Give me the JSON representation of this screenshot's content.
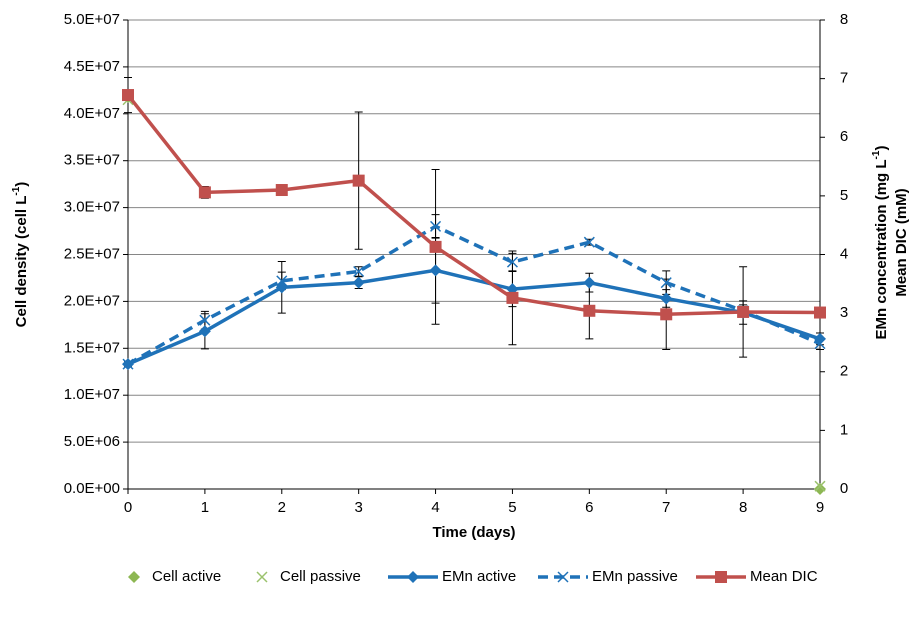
{
  "chart_data": {
    "type": "line",
    "x_label": "Time (days)",
    "y_label": [
      "Cell density (cell L",
      "-1",
      ")"
    ],
    "y2_label": [
      [
        "EMn concentration (mg L",
        "-1",
        ")"
      ],
      [
        "Mean DIC (mM)"
      ]
    ],
    "x": [
      0,
      1,
      2,
      3,
      4,
      5,
      6,
      7,
      8,
      9
    ],
    "xlim": [
      0,
      9
    ],
    "xticks": [
      0,
      1,
      2,
      3,
      4,
      5,
      6,
      7,
      8,
      9
    ],
    "ylim": [
      0,
      50000000
    ],
    "yticks": [
      {
        "value": 0,
        "label": "0.0E+00"
      },
      {
        "value": 5000000,
        "label": "5.0E+06"
      },
      {
        "value": 10000000,
        "label": "1.0E+07"
      },
      {
        "value": 15000000,
        "label": "1.5E+07"
      },
      {
        "value": 20000000,
        "label": "2.0E+07"
      },
      {
        "value": 25000000,
        "label": "2.5E+07"
      },
      {
        "value": 30000000,
        "label": "3.0E+07"
      },
      {
        "value": 35000000,
        "label": "3.5E+07"
      },
      {
        "value": 40000000,
        "label": "4.0E+07"
      },
      {
        "value": 45000000,
        "label": "4.5E+07"
      },
      {
        "value": 50000000,
        "label": "5.0E+07"
      }
    ],
    "y2lim": [
      0,
      8
    ],
    "y2ticks": [
      0,
      1,
      2,
      3,
      4,
      5,
      6,
      7,
      8
    ],
    "grid": true,
    "legend": "bottom",
    "series": [
      {
        "name": "Cell active",
        "color": "#8db753",
        "marker": "diamond",
        "values": [
          41800000,
          null,
          null,
          null,
          null,
          null,
          null,
          null,
          null,
          0
        ]
      },
      {
        "name": "Cell passive",
        "color": "#9bc26d",
        "marker": "x",
        "values": [
          41500000,
          null,
          null,
          null,
          null,
          null,
          null,
          null,
          null,
          300000
        ]
      },
      {
        "name": "EMn active",
        "color": "#1f72b8",
        "marker": "diamond",
        "line": "solid",
        "axis": "y2",
        "values": [
          2.13,
          2.69,
          3.44,
          3.52,
          3.73,
          3.41,
          3.52,
          3.25,
          3.01,
          2.56
        ],
        "errors": [
          0.05,
          0.3,
          0.44,
          0.1,
          0.56,
          0.3,
          0.16,
          0.15,
          0.2,
          0.1
        ]
      },
      {
        "name": "EMn passive",
        "color": "#1f72b8",
        "marker": "x",
        "line": "dashed",
        "axis": "y2",
        "values": [
          2.13,
          2.88,
          3.55,
          3.71,
          4.48,
          3.87,
          4.21,
          3.52,
          3.04,
          2.48
        ],
        "errors": [
          0.05,
          0.15,
          0.15,
          0.08,
          0.2,
          0.15,
          0.05,
          0.2,
          0.1,
          0.1
        ]
      },
      {
        "name": "Mean DIC",
        "color": "#c0504d",
        "marker": "square",
        "line": "solid",
        "axis": "y2",
        "values": [
          6.72,
          5.06,
          5.1,
          5.26,
          4.13,
          3.26,
          3.04,
          2.98,
          3.02,
          3.01
        ],
        "errors": [
          0.3,
          0.1,
          0.05,
          1.17,
          1.32,
          0.8,
          0.48,
          0.6,
          0.77,
          0.05
        ]
      }
    ]
  }
}
